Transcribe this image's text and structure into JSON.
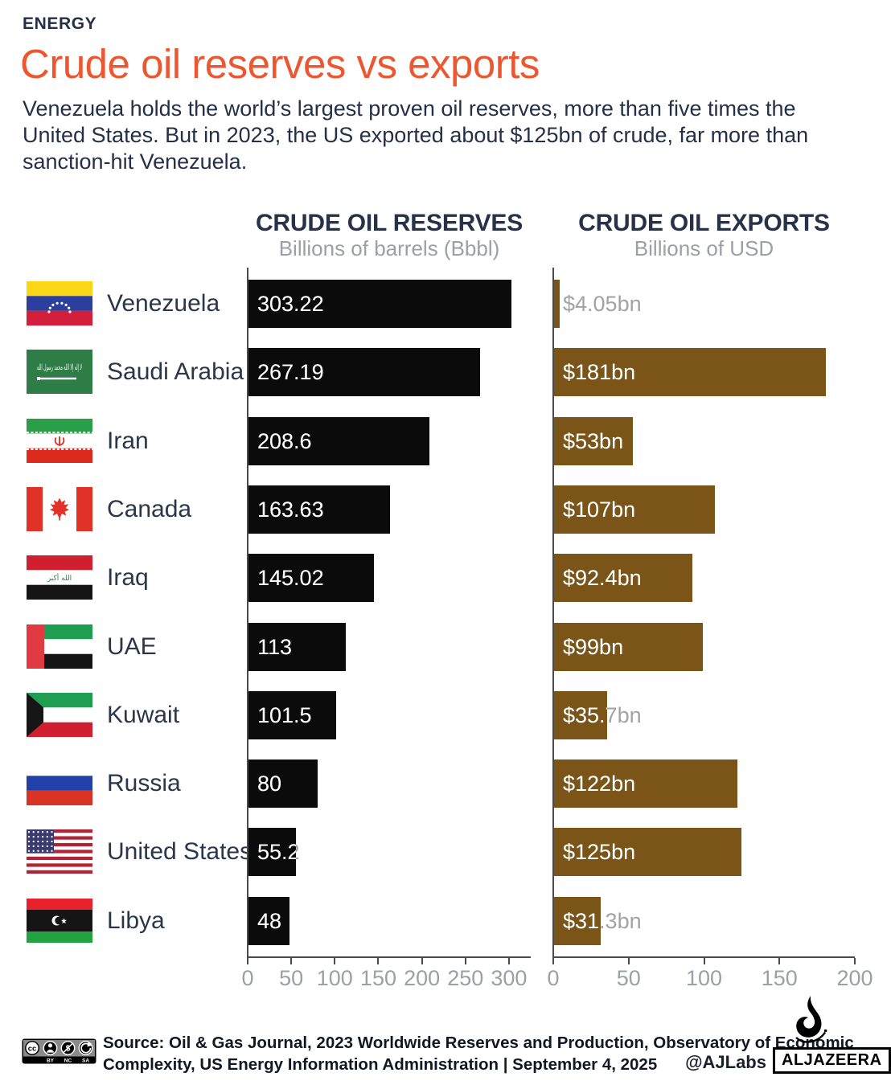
{
  "kicker": "ENERGY",
  "title": "Crude oil reserves vs exports",
  "intro": "Venezuela holds the world’s largest proven oil reserves, more than five times the United States. But in 2023, the US exported about $125bn of crude, far more than sanction-hit Venezuela.",
  "colors": {
    "accent_orange": "#ec5630",
    "text_navy": "#243047",
    "muted_gray": "#9aa0a6",
    "reserves_bar": "#0b0b0b",
    "exports_bar": "#7a5517",
    "axis_line": "#4a4a4a"
  },
  "chart_data": {
    "type": "bar",
    "orientation": "horizontal",
    "grid": false,
    "legend_position": "none",
    "categories": [
      "Venezuela",
      "Saudi Arabia",
      "Iran",
      "Canada",
      "Iraq",
      "UAE",
      "Kuwait",
      "Russia",
      "United States",
      "Libya"
    ],
    "flags": [
      "ve",
      "sa",
      "ir",
      "ca",
      "iq",
      "ae",
      "kw",
      "ru",
      "us",
      "ly"
    ],
    "series": [
      {
        "name": "CRUDE OIL RESERVES",
        "subtitle": "Billions of barrels (Bbbl)",
        "unit": "billions of barrels",
        "color": "#0b0b0b",
        "values": [
          303.22,
          267.19,
          208.6,
          163.63,
          145.02,
          113,
          101.5,
          80,
          55.2,
          48
        ],
        "labels": [
          "303.22",
          "267.19",
          "208.6",
          "163.63",
          "145.02",
          "113",
          "101.5",
          "80",
          "55.2",
          "48"
        ],
        "axis_ticks": [
          0,
          50,
          100,
          150,
          200,
          250,
          300
        ],
        "axis_scale_max": 325
      },
      {
        "name": "CRUDE OIL EXPORTS",
        "subtitle": "Billions of USD",
        "unit": "billions of USD",
        "color": "#7a5517",
        "values": [
          4.05,
          181,
          53,
          107,
          92.4,
          99,
          35.7,
          122,
          125,
          31.3
        ],
        "labels": [
          "$4.05bn",
          "$181bn",
          "$53bn",
          "$107bn",
          "$92.4bn",
          "$99bn",
          "$35.7bn",
          "$122bn",
          "$125bn",
          "$31.3bn"
        ],
        "axis_ticks": [
          0,
          50,
          100,
          150,
          200
        ],
        "axis_scale_max": 200
      }
    ]
  },
  "footer": {
    "cc_label": "cc",
    "license_labels": [
      "BY",
      "NC",
      "SA"
    ],
    "source_line1": "Source: Oil & Gas Journal, 2023 Worldwide Reserves and Production, Observatory of Economic",
    "source_line2": "Complexity, US Energy Information Administration  |  September 4, 2025",
    "credit": "@AJLabs",
    "brand": "ALJAZEERA"
  }
}
